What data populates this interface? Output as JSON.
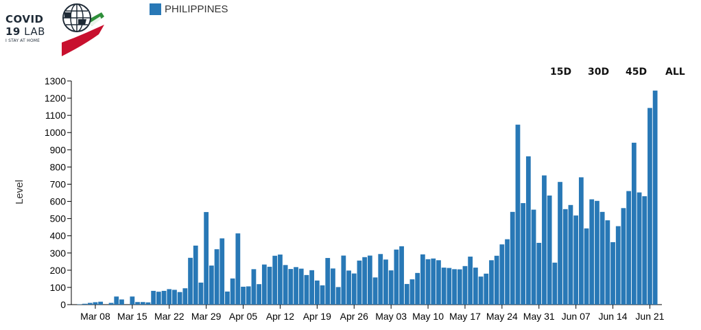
{
  "logo": {
    "line1": "COVID",
    "line2_num": "19",
    "line2_word": " LAB",
    "tagline": "I STAY AT HOME"
  },
  "range_buttons": [
    {
      "label": "15D"
    },
    {
      "label": "30D"
    },
    {
      "label": "45D"
    },
    {
      "label": "ALL"
    }
  ],
  "colors": {
    "bar": "#2878b6",
    "axis": "#000000",
    "logo_dark": "#1e2a36",
    "logo_green": "#2f8f3a",
    "logo_red": "#c8102e"
  },
  "chart_data": {
    "type": "bar",
    "legend": {
      "position": "top-left",
      "entries": [
        "PHILIPPINES"
      ]
    },
    "ylabel": "Level",
    "ylim": [
      0,
      1300
    ],
    "yticks": [
      0,
      100,
      200,
      300,
      400,
      500,
      600,
      700,
      800,
      900,
      1000,
      1100,
      1200,
      1300
    ],
    "xtick_labels": [
      "Mar 08",
      "Mar 15",
      "Mar 22",
      "Mar 29",
      "Apr 05",
      "Apr 12",
      "Apr 19",
      "Apr 26",
      "May 03",
      "May 10",
      "May 17",
      "May 24",
      "May 31",
      "Jun 07",
      "Jun 14",
      "Jun 21"
    ],
    "first_date": "Mar 05",
    "grid": false,
    "series": [
      {
        "name": "PHILIPPINES",
        "color": "#2878b6",
        "values": [
          2,
          5,
          10,
          14,
          17,
          0,
          10,
          47,
          30,
          0,
          47,
          15,
          15,
          13,
          80,
          75,
          80,
          90,
          86,
          73,
          95,
          272,
          343,
          128,
          538,
          227,
          322,
          385,
          76,
          152,
          414,
          104,
          106,
          206,
          119,
          233,
          220,
          284,
          291,
          230,
          207,
          218,
          209,
          172,
          200,
          140,
          112,
          271,
          210,
          102,
          285,
          198,
          181,
          256,
          276,
          285,
          158,
          294,
          262,
          199,
          320,
          339,
          120,
          147,
          184,
          292,
          264,
          268,
          258,
          215,
          213,
          206,
          205,
          224,
          279,
          215,
          163,
          180,
          258,
          284,
          350,
          380,
          539,
          1046,
          590,
          862,
          552,
          359,
          751,
          634,
          244,
          713,
          555,
          579,
          518,
          740,
          443,
          612,
          603,
          539,
          490,
          363,
          456,
          561,
          660,
          941,
          652,
          630,
          1143,
          1244
        ]
      }
    ]
  }
}
